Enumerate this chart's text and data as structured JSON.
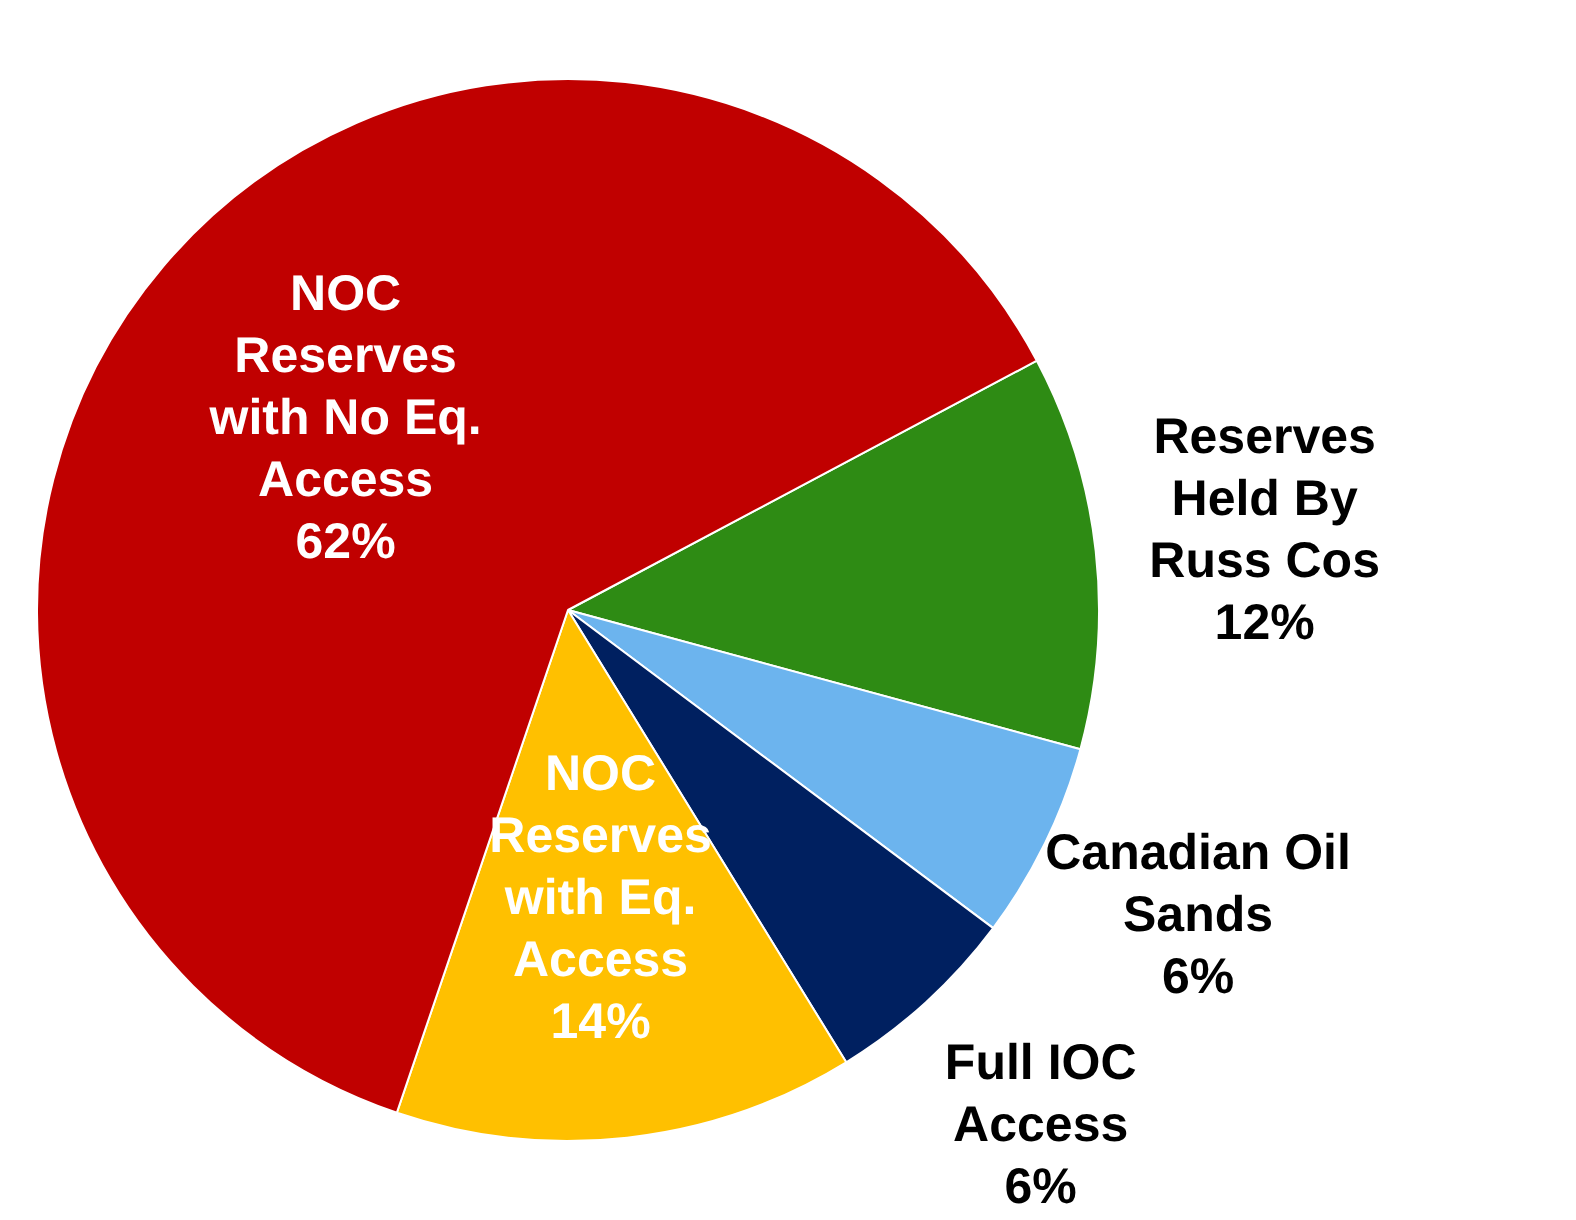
{
  "chart_data": {
    "type": "pie",
    "categories": [
      "Reserves Held By Russ Cos",
      "Canadian Oil Sands",
      "Full IOC Access",
      "NOC Reserves with Eq. Access",
      "NOC Reserves with No Eq. Access"
    ],
    "values": [
      12,
      6,
      6,
      14,
      62
    ],
    "value_labels": [
      "12%",
      "6%",
      "6%",
      "14%",
      "62%"
    ],
    "colors": [
      "#2e8b14",
      "#6cb4ee",
      "#002060",
      "#ffc000",
      "#c00000"
    ],
    "legend": false
  }
}
